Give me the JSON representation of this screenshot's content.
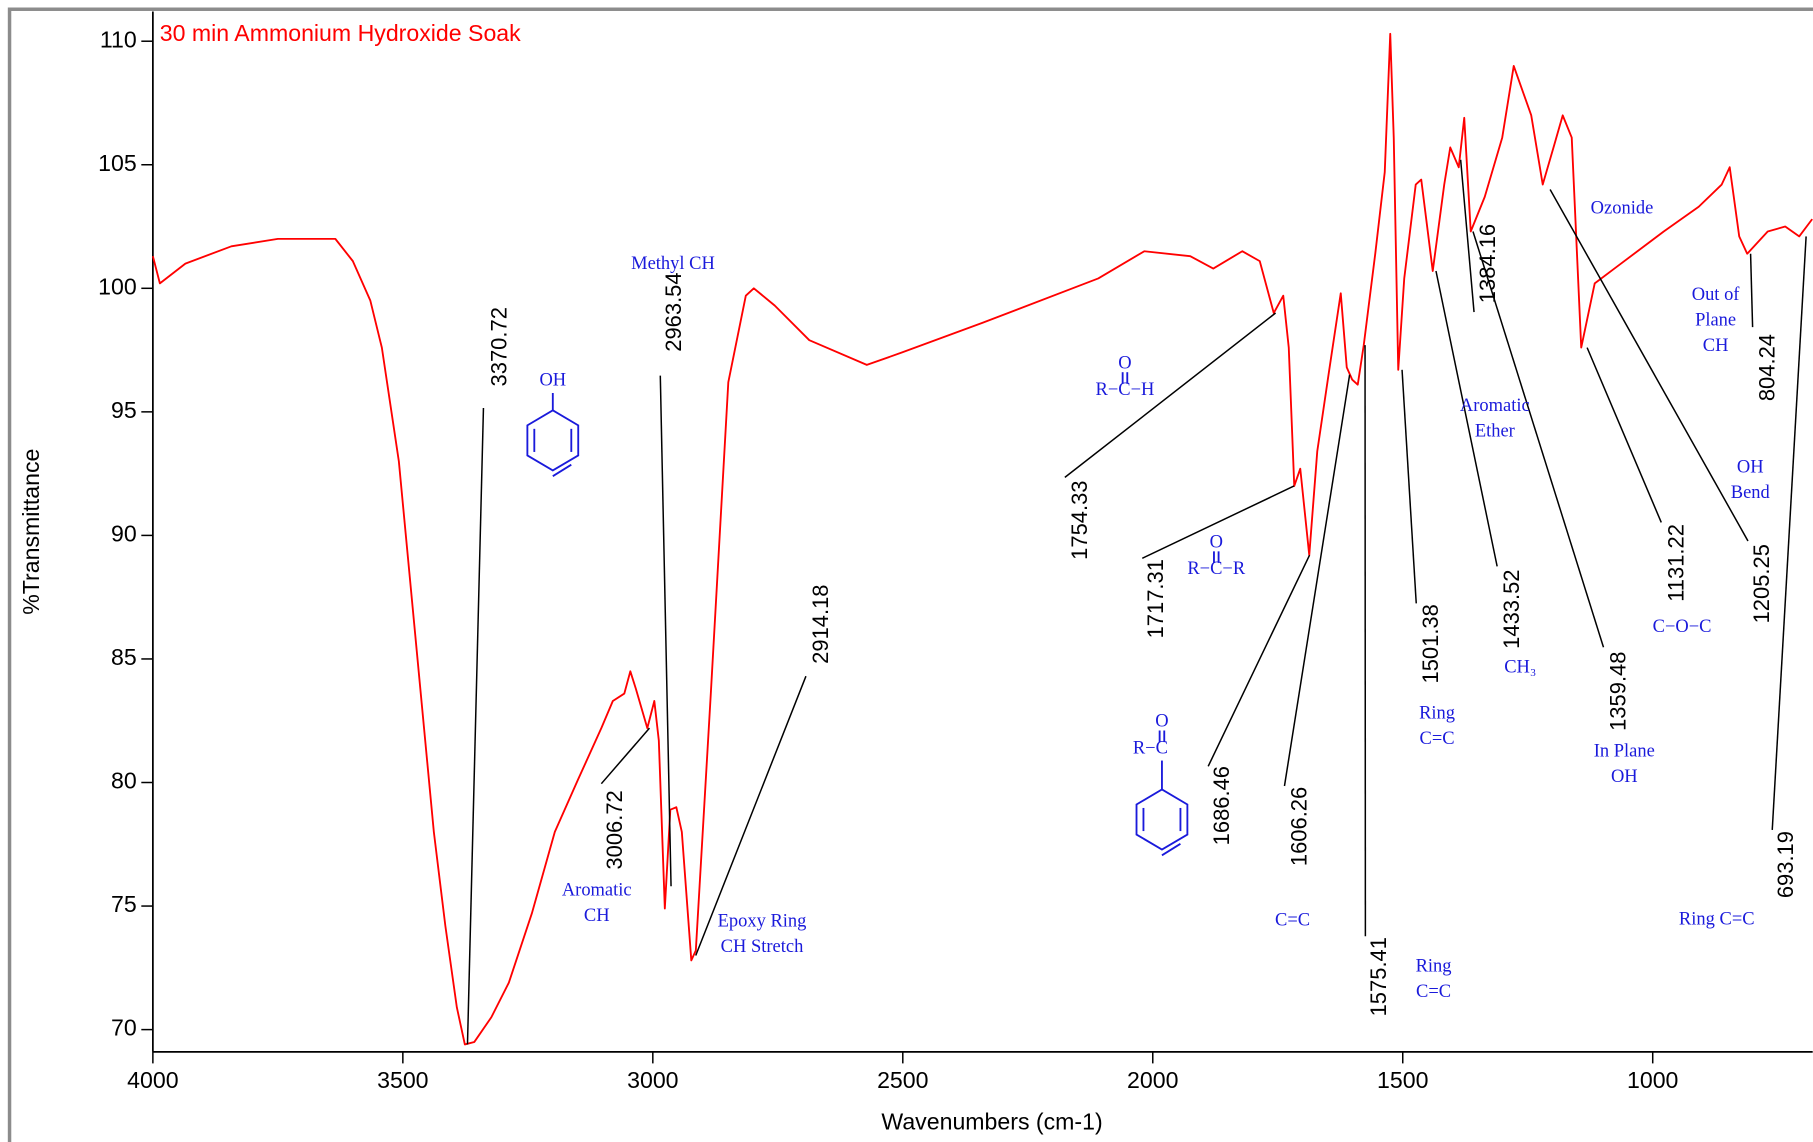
{
  "chart_data": {
    "type": "line",
    "title": "30 min Ammonium Hydroxide Soak",
    "xlabel": "Wavenumbers (cm-1)",
    "ylabel": "%Transmittance",
    "xlim": [
      4000,
      680
    ],
    "ylim": [
      69.1,
      111.2
    ],
    "xticks": [
      4000,
      3500,
      3000,
      2500,
      2000,
      1500,
      1000
    ],
    "yticks": [
      70,
      75,
      80,
      85,
      90,
      95,
      100,
      105,
      110
    ],
    "x": [
      4000,
      3986,
      3935,
      3843,
      3750,
      3635,
      3600,
      3565,
      3542,
      3508,
      3473,
      3438,
      3415,
      3392,
      3376,
      3357,
      3323,
      3288,
      3242,
      3196,
      3150,
      3103,
      3080,
      3057,
      3045,
      3034,
      3011,
      2997,
      2988,
      2976,
      2965,
      2953,
      2942,
      2923,
      2914,
      2884,
      2849,
      2814,
      2798,
      2756,
      2687,
      2572,
      2502,
      2341,
      2109,
      2017,
      1925,
      1879,
      1821,
      1786,
      1758,
      1739,
      1728,
      1717,
      1705,
      1687,
      1671,
      1647,
      1624,
      1612,
      1601,
      1590,
      1578,
      1555,
      1536,
      1525,
      1518,
      1509,
      1497,
      1474,
      1463,
      1440,
      1417,
      1405,
      1388,
      1377,
      1364,
      1336,
      1301,
      1278,
      1243,
      1220,
      1197,
      1180,
      1162,
      1143,
      1116,
      1070,
      978,
      908,
      862,
      846,
      827,
      811,
      770,
      735,
      707,
      681
    ],
    "series": [
      {
        "name": "30 min Ammonium Hydroxide Soak",
        "color": "#ff0000",
        "values": [
          101.3,
          100.2,
          101.0,
          101.7,
          102.0,
          102.0,
          101.1,
          99.5,
          97.6,
          93.0,
          85.5,
          78.0,
          74.2,
          70.9,
          69.4,
          69.5,
          70.5,
          71.9,
          74.7,
          78.0,
          80.1,
          82.2,
          83.3,
          83.6,
          84.5,
          83.8,
          82.2,
          83.3,
          81.7,
          74.9,
          78.9,
          79.0,
          78.0,
          72.8,
          73.2,
          83.6,
          96.2,
          99.7,
          100.0,
          99.3,
          97.9,
          96.9,
          97.4,
          98.6,
          100.4,
          101.5,
          101.3,
          100.8,
          101.5,
          101.1,
          99.0,
          99.7,
          97.6,
          92.0,
          92.7,
          89.2,
          93.4,
          96.7,
          99.8,
          96.8,
          96.3,
          96.1,
          97.7,
          101.4,
          104.7,
          110.3,
          106.1,
          96.7,
          100.4,
          104.2,
          104.4,
          100.7,
          104.2,
          105.7,
          104.9,
          106.9,
          102.3,
          103.7,
          106.1,
          109.0,
          107.0,
          104.2,
          105.8,
          107.0,
          106.1,
          97.6,
          100.2,
          100.9,
          102.3,
          103.3,
          104.2,
          104.9,
          102.1,
          101.4,
          102.3,
          102.5,
          102.1,
          102.8
        ]
      }
    ],
    "annotations": [
      {
        "label": "3370.72",
        "x": 3370.72,
        "y": 69.4
      },
      {
        "label": "3006.72",
        "x": 3006.72,
        "y": 82.2
      },
      {
        "label": "2963.54",
        "x": 2963.54,
        "y": 75.8
      },
      {
        "label": "2914.18",
        "x": 2914.18,
        "y": 73.0
      },
      {
        "label": "1754.33",
        "x": 1754.33,
        "y": 99.0
      },
      {
        "label": "1717.31",
        "x": 1717.31,
        "y": 92.0
      },
      {
        "label": "1686.46",
        "x": 1686.46,
        "y": 89.2
      },
      {
        "label": "1606.26",
        "x": 1606.26,
        "y": 96.5
      },
      {
        "label": "1575.41",
        "x": 1575.41,
        "y": 97.7
      },
      {
        "label": "1501.38",
        "x": 1501.38,
        "y": 96.7
      },
      {
        "label": "1433.52",
        "x": 1433.52,
        "y": 100.7
      },
      {
        "label": "1384.16",
        "x": 1384.16,
        "y": 105.2
      },
      {
        "label": "1359.48",
        "x": 1359.48,
        "y": 102.3
      },
      {
        "label": "1131.22",
        "x": 1131.22,
        "y": 97.6
      },
      {
        "label": "1205.25",
        "x": 1205.25,
        "y": 104.0
      },
      {
        "label": "804.24",
        "x": 804.24,
        "y": 101.4
      },
      {
        "label": "693.19",
        "x": 693.19,
        "y": 102.1
      }
    ],
    "group_labels": [
      {
        "lines": [
          "Methyl CH"
        ]
      },
      {
        "lines": [
          "Aromatic",
          "CH"
        ]
      },
      {
        "lines": [
          "Epoxy Ring",
          "CH Stretch"
        ]
      },
      {
        "lines": [
          "C=C"
        ]
      },
      {
        "lines": [
          "Ring",
          "C=C"
        ]
      },
      {
        "lines": [
          "Ring",
          "C=C"
        ]
      },
      {
        "lines": [
          "Aromatic",
          "Ether"
        ]
      },
      {
        "lines": [
          "CH₃"
        ]
      },
      {
        "lines": [
          "In Plane",
          "OH"
        ]
      },
      {
        "lines": [
          "C−O−C"
        ]
      },
      {
        "lines": [
          "Ozonide"
        ]
      },
      {
        "lines": [
          "OH",
          "Bend"
        ]
      },
      {
        "lines": [
          "Out of",
          "Plane",
          "CH"
        ]
      },
      {
        "lines": [
          "Ring C=C"
        ]
      },
      {
        "lines": [
          "OH"
        ]
      },
      {
        "lines": [
          "O"
        ]
      },
      {
        "lines": [
          "R−C−H"
        ]
      },
      {
        "lines": [
          "O"
        ]
      },
      {
        "lines": [
          "R−C−R"
        ]
      },
      {
        "lines": [
          "O"
        ]
      },
      {
        "lines": [
          "R−C"
        ]
      }
    ]
  }
}
